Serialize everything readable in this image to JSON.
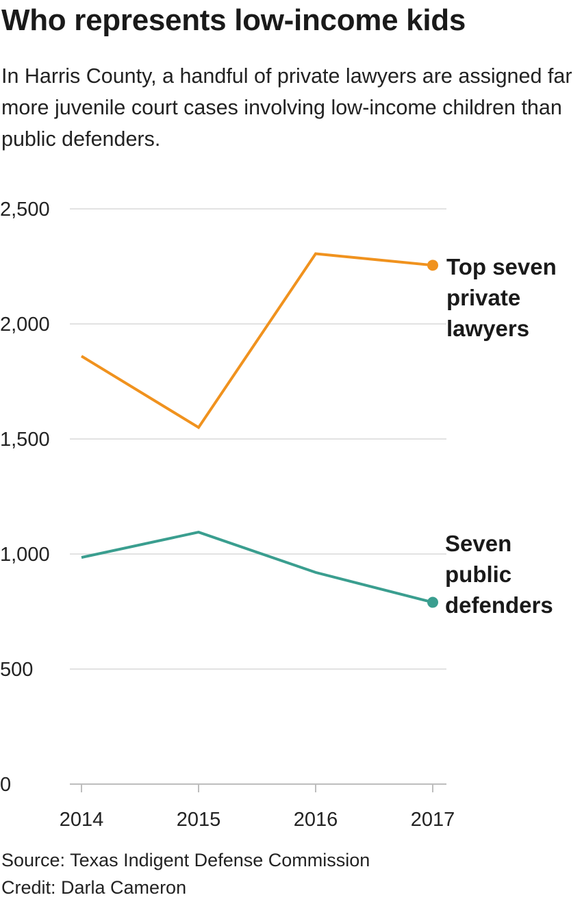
{
  "header": {
    "title": "Who represents low-income kids",
    "subtitle": "In Harris County, a handful of private lawyers are assigned far more juvenile court cases involving low-income children than public defenders."
  },
  "footer": {
    "source": "Source: Texas Indigent Defense Commission",
    "credit": "Credit: Darla Cameron"
  },
  "chart_data": {
    "type": "line",
    "title": "Who represents low-income kids",
    "subtitle": "In Harris County, a handful of private lawyers are assigned far more juvenile court cases involving low-income children than public defenders.",
    "xlabel": "",
    "ylabel": "",
    "x": [
      2014,
      2015,
      2016,
      2017
    ],
    "x_tick_labels": [
      "2014",
      "2015",
      "2016",
      "2017"
    ],
    "ylim": [
      0,
      2500
    ],
    "y_ticks": [
      0,
      500,
      1000,
      1500,
      2000,
      2500
    ],
    "y_tick_labels": [
      "0",
      "500",
      "1,000",
      "1,500",
      "2,000",
      "2,500"
    ],
    "grid": true,
    "legend": "direct labels at right end of lines",
    "series": [
      {
        "name": "Top seven private lawyers",
        "label_lines": [
          "Top seven",
          "private",
          "lawyers"
        ],
        "color": "#f0921e",
        "values": [
          1860,
          1550,
          2305,
          2255
        ]
      },
      {
        "name": "Seven public defenders",
        "label_lines": [
          "Seven",
          "public",
          "defenders"
        ],
        "color": "#3a9e8f",
        "values": [
          985,
          1095,
          920,
          790
        ]
      }
    ]
  }
}
